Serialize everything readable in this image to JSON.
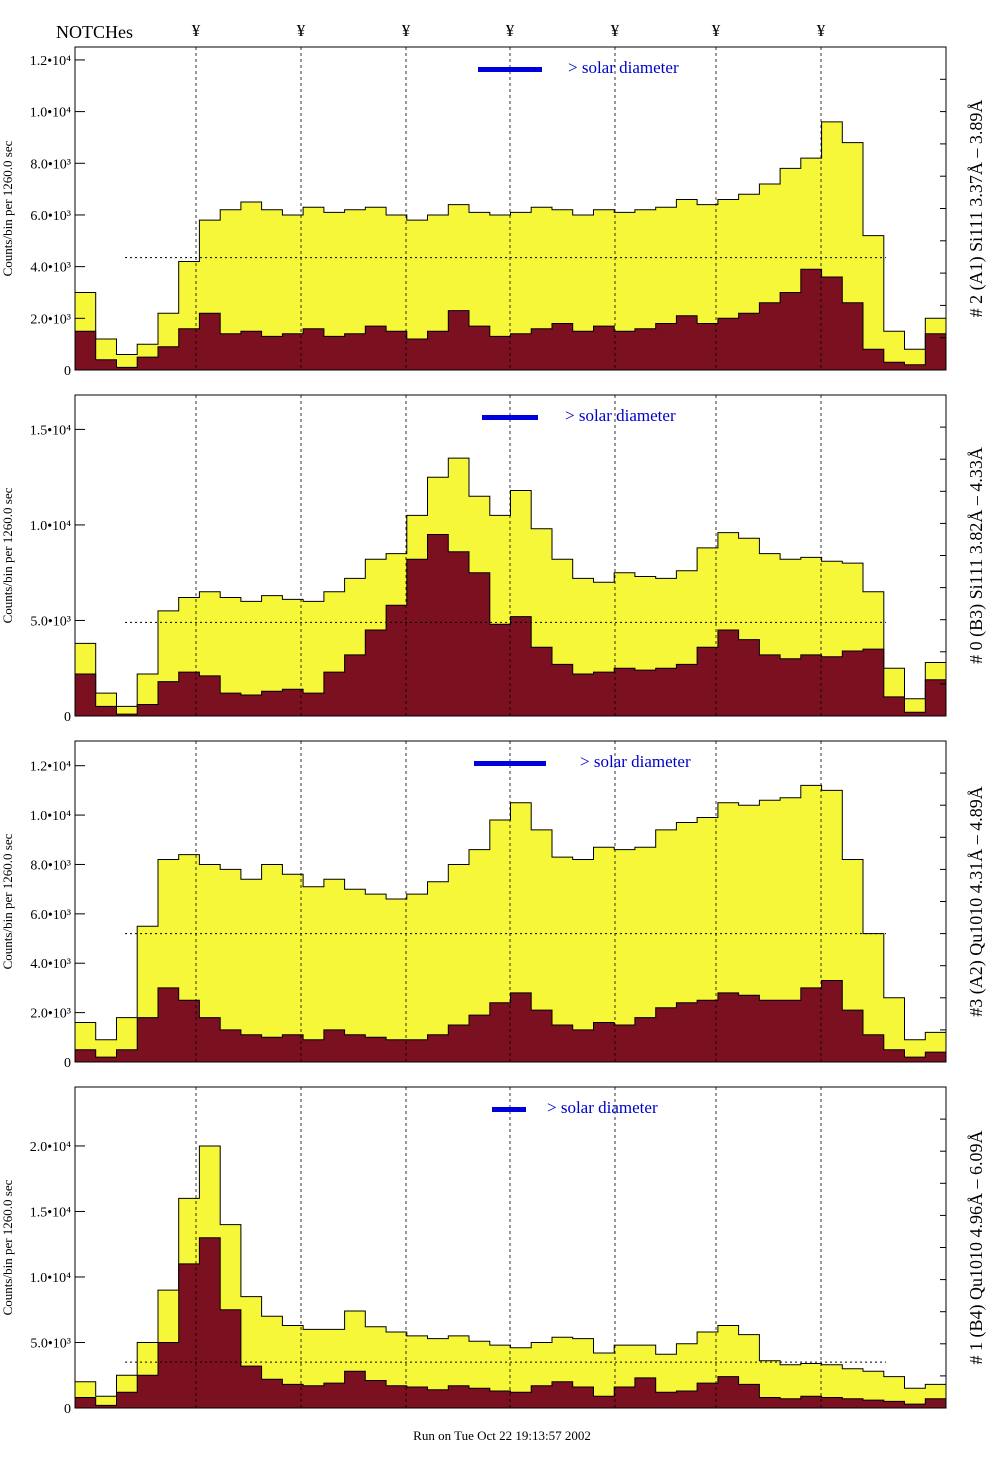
{
  "header": {
    "notches_label": "NOTCHes",
    "notch_marker": "¥"
  },
  "footer": {
    "run_text": "Run on Tue Oct 22 19:13:57 2002"
  },
  "chart_data": [
    {
      "type": "histogram",
      "ylabel": "Counts/bin per   1260.0 sec",
      "side_title": "# 2 (A1) Si111  3.37Å – 3.89Å",
      "bar_label": "> solar diameter",
      "ylim": [
        0,
        12500
      ],
      "yticks": [
        0,
        2000,
        4000,
        6000,
        8000,
        10000,
        12000
      ],
      "ytick_labels": [
        "0",
        "2.0•10³",
        "4.0•10³",
        "6.0•10³",
        "8.0•10³",
        "1.0•10⁴",
        "1.2•10⁴"
      ],
      "total_counts": [
        3000,
        1200,
        600,
        1000,
        2200,
        4200,
        5800,
        6200,
        6500,
        6200,
        6000,
        6300,
        6100,
        6200,
        6300,
        6000,
        5800,
        6000,
        6400,
        6100,
        6000,
        6100,
        6300,
        6200,
        6000,
        6200,
        6100,
        6200,
        6300,
        6600,
        6400,
        6600,
        6800,
        7200,
        7800,
        8200,
        9600,
        8800,
        5200,
        1500,
        800,
        2000
      ],
      "flare_counts": [
        1500,
        400,
        100,
        500,
        900,
        1600,
        2200,
        1400,
        1500,
        1300,
        1400,
        1600,
        1300,
        1400,
        1700,
        1500,
        1200,
        1500,
        2300,
        1700,
        1300,
        1400,
        1600,
        1800,
        1500,
        1700,
        1500,
        1600,
        1800,
        2100,
        1800,
        2000,
        2200,
        2600,
        3000,
        3900,
        3600,
        2600,
        800,
        300,
        200,
        1400
      ],
      "mean_level": 4350
    },
    {
      "type": "histogram",
      "ylabel": "Counts/bin per   1260.0 sec",
      "side_title": "# 0 (B3) Si111  3.82Å – 4.33Å",
      "bar_label": "> solar diameter",
      "ylim": [
        0,
        16800
      ],
      "yticks": [
        0,
        5000,
        10000,
        15000
      ],
      "ytick_labels": [
        "0",
        "5.0•10³",
        "1.0•10⁴",
        "1.5•10⁴"
      ],
      "total_counts": [
        3800,
        1200,
        500,
        2200,
        5500,
        6200,
        6500,
        6200,
        6000,
        6300,
        6100,
        6000,
        6500,
        7200,
        8200,
        8500,
        10500,
        12500,
        13500,
        11500,
        10500,
        11800,
        9800,
        8200,
        7200,
        7000,
        7500,
        7300,
        7200,
        7600,
        8800,
        9600,
        9300,
        8500,
        8200,
        8300,
        8100,
        8000,
        6500,
        2500,
        900,
        2800
      ],
      "flare_counts": [
        2200,
        500,
        100,
        600,
        1800,
        2300,
        2100,
        1200,
        1100,
        1300,
        1400,
        1200,
        2300,
        3200,
        4500,
        5800,
        8200,
        9500,
        8600,
        7500,
        4800,
        5200,
        3600,
        2700,
        2200,
        2300,
        2500,
        2400,
        2500,
        2700,
        3600,
        4500,
        4000,
        3200,
        3000,
        3200,
        3100,
        3400,
        3500,
        1000,
        200,
        1900
      ],
      "mean_level": 4900
    },
    {
      "type": "histogram",
      "ylabel": "Counts/bin per   1260.0 sec",
      "side_title": "#3 (A2) Qu1010  4.31Å – 4.89Å",
      "bar_label": "> solar diameter",
      "ylim": [
        0,
        13000
      ],
      "yticks": [
        0,
        2000,
        4000,
        6000,
        8000,
        10000,
        12000
      ],
      "ytick_labels": [
        "0",
        "2.0•10³",
        "4.0•10³",
        "6.0•10³",
        "8.0•10³",
        "1.0•10⁴",
        "1.2•10⁴"
      ],
      "total_counts": [
        1600,
        900,
        1800,
        5500,
        8200,
        8400,
        8000,
        7800,
        7400,
        8000,
        7600,
        7100,
        7400,
        7000,
        6800,
        6600,
        6800,
        7300,
        8000,
        8600,
        9800,
        10500,
        9400,
        8300,
        8200,
        8700,
        8600,
        8700,
        9400,
        9700,
        9900,
        10500,
        10400,
        10600,
        10700,
        11200,
        11000,
        8200,
        5200,
        2600,
        900,
        1200
      ],
      "flare_counts": [
        500,
        200,
        500,
        1800,
        3000,
        2500,
        1800,
        1300,
        1100,
        1000,
        1100,
        900,
        1300,
        1100,
        1000,
        900,
        900,
        1100,
        1500,
        1900,
        2400,
        2800,
        2100,
        1500,
        1300,
        1600,
        1500,
        1800,
        2200,
        2400,
        2500,
        2800,
        2700,
        2500,
        2500,
        3000,
        3300,
        2100,
        1100,
        500,
        200,
        400
      ],
      "mean_level": 5200
    },
    {
      "type": "histogram",
      "ylabel": "Counts/bin per   1260.0 sec",
      "side_title": "# 1 (B4) Qu1010 4.96Å – 6.09Å",
      "bar_label": "> solar diameter",
      "ylim": [
        0,
        24500
      ],
      "yticks": [
        0,
        5000,
        10000,
        15000,
        20000
      ],
      "ytick_labels": [
        "0",
        "5.0•10³",
        "1.0•10⁴",
        "1.5•10⁴",
        "2.0•10⁴"
      ],
      "total_counts": [
        2000,
        900,
        2500,
        5000,
        9000,
        16000,
        20000,
        14000,
        8500,
        7000,
        6300,
        6000,
        6000,
        7400,
        6200,
        5800,
        5500,
        5300,
        5500,
        5100,
        4800,
        4600,
        5000,
        5400,
        5300,
        4200,
        4800,
        4800,
        4100,
        4900,
        5800,
        6300,
        5600,
        3600,
        3300,
        3400,
        3300,
        3000,
        2800,
        2400,
        1500,
        1800
      ],
      "flare_counts": [
        800,
        200,
        1200,
        2500,
        5000,
        11000,
        13000,
        7500,
        3200,
        2200,
        1800,
        1700,
        1900,
        2800,
        2100,
        1700,
        1600,
        1400,
        1700,
        1500,
        1300,
        1200,
        1700,
        2000,
        1600,
        900,
        1600,
        2300,
        1200,
        1300,
        1900,
        2400,
        1800,
        800,
        700,
        900,
        800,
        700,
        600,
        500,
        300,
        700
      ],
      "mean_level": 3500
    }
  ]
}
